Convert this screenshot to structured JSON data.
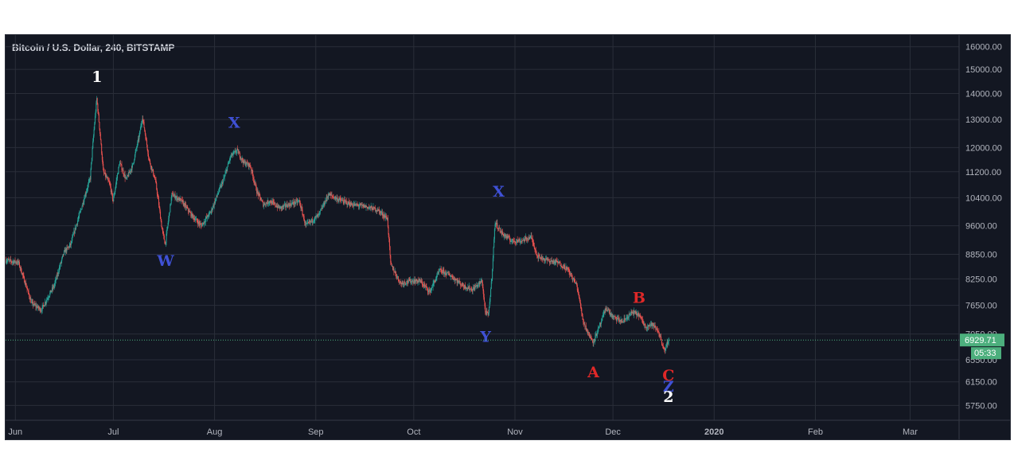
{
  "chart_data": {
    "type": "candlestick",
    "title": "Bitcoin / U.S. Dollar, 240, BITSTAMP",
    "y_ticks": [
      "16000.00",
      "15000.00",
      "14000.00",
      "13000.00",
      "12000.00",
      "11200.00",
      "10400.00",
      "9600.00",
      "8850.00",
      "8250.00",
      "7650.00",
      "7050.00",
      "6550.00",
      "6150.00",
      "5750.00"
    ],
    "y_range": [
      5600,
      16100
    ],
    "y_scale": "log",
    "x_ticks": [
      {
        "label": "Jun",
        "date": "2019-06-01",
        "bold": false
      },
      {
        "label": "Jul",
        "date": "2019-07-01",
        "bold": false
      },
      {
        "label": "Aug",
        "date": "2019-08-01",
        "bold": false
      },
      {
        "label": "Sep",
        "date": "2019-09-01",
        "bold": false
      },
      {
        "label": "Oct",
        "date": "2019-10-01",
        "bold": false
      },
      {
        "label": "Nov",
        "date": "2019-11-01",
        "bold": false
      },
      {
        "label": "Dec",
        "date": "2019-12-01",
        "bold": false
      },
      {
        "label": "2020",
        "date": "2020-01-01",
        "bold": true
      },
      {
        "label": "Feb",
        "date": "2020-02-01",
        "bold": false
      },
      {
        "label": "Mar",
        "date": "2020-03-01",
        "bold": false
      }
    ],
    "x_range": [
      "2019-05-29",
      "2020-03-16"
    ],
    "price_path": [
      [
        "2019-05-29",
        8700
      ],
      [
        "2019-06-02",
        8650
      ],
      [
        "2019-06-06",
        7700
      ],
      [
        "2019-06-09",
        7550
      ],
      [
        "2019-06-13",
        8100
      ],
      [
        "2019-06-16",
        8900
      ],
      [
        "2019-06-18",
        9100
      ],
      [
        "2019-06-21",
        10000
      ],
      [
        "2019-06-24",
        11000
      ],
      [
        "2019-06-26",
        13800
      ],
      [
        "2019-06-28",
        11200
      ],
      [
        "2019-06-30",
        10800
      ],
      [
        "2019-07-01",
        10300
      ],
      [
        "2019-07-03",
        11500
      ],
      [
        "2019-07-05",
        10950
      ],
      [
        "2019-07-07",
        11400
      ],
      [
        "2019-07-09",
        12400
      ],
      [
        "2019-07-10",
        13100
      ],
      [
        "2019-07-12",
        11600
      ],
      [
        "2019-07-14",
        10900
      ],
      [
        "2019-07-16",
        9500
      ],
      [
        "2019-07-17",
        9100
      ],
      [
        "2019-07-19",
        10500
      ],
      [
        "2019-07-22",
        10300
      ],
      [
        "2019-07-25",
        9900
      ],
      [
        "2019-07-28",
        9600
      ],
      [
        "2019-07-31",
        10000
      ],
      [
        "2019-08-02",
        10500
      ],
      [
        "2019-08-04",
        11000
      ],
      [
        "2019-08-06",
        11700
      ],
      [
        "2019-08-08",
        11900
      ],
      [
        "2019-08-10",
        11500
      ],
      [
        "2019-08-12",
        11400
      ],
      [
        "2019-08-14",
        10600
      ],
      [
        "2019-08-16",
        10200
      ],
      [
        "2019-08-18",
        10300
      ],
      [
        "2019-08-21",
        10100
      ],
      [
        "2019-08-24",
        10200
      ],
      [
        "2019-08-27",
        10300
      ],
      [
        "2019-08-29",
        9600
      ],
      [
        "2019-09-02",
        9900
      ],
      [
        "2019-09-05",
        10500
      ],
      [
        "2019-09-08",
        10350
      ],
      [
        "2019-09-12",
        10200
      ],
      [
        "2019-09-16",
        10150
      ],
      [
        "2019-09-20",
        10050
      ],
      [
        "2019-09-23",
        9800
      ],
      [
        "2019-09-24",
        8600
      ],
      [
        "2019-09-27",
        8150
      ],
      [
        "2019-09-30",
        8200
      ],
      [
        "2019-10-03",
        8200
      ],
      [
        "2019-10-06",
        7950
      ],
      [
        "2019-10-09",
        8450
      ],
      [
        "2019-10-12",
        8350
      ],
      [
        "2019-10-16",
        8100
      ],
      [
        "2019-10-19",
        8000
      ],
      [
        "2019-10-22",
        8200
      ],
      [
        "2019-10-23",
        7500
      ],
      [
        "2019-10-24",
        7450
      ],
      [
        "2019-10-25",
        8300
      ],
      [
        "2019-10-26",
        9700
      ],
      [
        "2019-10-28",
        9400
      ],
      [
        "2019-10-31",
        9200
      ],
      [
        "2019-11-03",
        9200
      ],
      [
        "2019-11-06",
        9300
      ],
      [
        "2019-11-08",
        8800
      ],
      [
        "2019-11-11",
        8700
      ],
      [
        "2019-11-14",
        8650
      ],
      [
        "2019-11-17",
        8500
      ],
      [
        "2019-11-20",
        8100
      ],
      [
        "2019-11-22",
        7300
      ],
      [
        "2019-11-24",
        7000
      ],
      [
        "2019-11-25",
        6900
      ],
      [
        "2019-11-27",
        7200
      ],
      [
        "2019-11-29",
        7600
      ],
      [
        "2019-12-01",
        7400
      ],
      [
        "2019-12-04",
        7300
      ],
      [
        "2019-12-07",
        7500
      ],
      [
        "2019-12-09",
        7450
      ],
      [
        "2019-12-11",
        7200
      ],
      [
        "2019-12-13",
        7250
      ],
      [
        "2019-12-15",
        7100
      ],
      [
        "2019-12-17",
        6700
      ],
      [
        "2019-12-18",
        6929.71
      ]
    ],
    "last_price": "6929.71",
    "last_price_value": 6929.71,
    "countdown": "05:33",
    "wave_labels": [
      {
        "text": "1",
        "date": "2019-06-26",
        "price": 14700,
        "color": "#ffffff"
      },
      {
        "text": "W",
        "date": "2019-07-17",
        "price": 8700,
        "color": "#3f51d6"
      },
      {
        "text": "X",
        "date": "2019-08-07",
        "price": 12900,
        "color": "#3f51d6"
      },
      {
        "text": "X",
        "date": "2019-10-27",
        "price": 10600,
        "color": "#3f51d6"
      },
      {
        "text": "Y",
        "date": "2019-10-23",
        "price": 7000,
        "color": "#3f51d6"
      },
      {
        "text": "A",
        "date": "2019-11-25",
        "price": 6330,
        "color": "#e02828"
      },
      {
        "text": "B",
        "date": "2019-12-09",
        "price": 7830,
        "color": "#e02828"
      },
      {
        "text": "C",
        "date": "2019-12-18",
        "price": 6270,
        "color": "#e02828"
      },
      {
        "text": "Z",
        "date": "2019-12-18",
        "price": 6080,
        "color": "#3f51d6"
      },
      {
        "text": "2",
        "date": "2019-12-18",
        "price": 5900,
        "color": "#ffffff"
      }
    ],
    "colors": {
      "background": "#131722",
      "grid": "#2a2e39",
      "candle_up": "#26a69a",
      "candle_down": "#ef5350",
      "axis_text": "#b2b5be",
      "price_tag": "#4caf7d",
      "price_line": "#4caf7d"
    },
    "grid": true,
    "legend": "none"
  }
}
